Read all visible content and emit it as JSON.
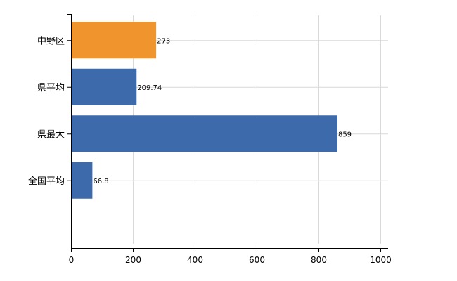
{
  "chart_data": {
    "type": "bar",
    "orientation": "horizontal",
    "categories": [
      "中野区",
      "県平均",
      "県最大",
      "全国平均"
    ],
    "values": [
      273,
      209.74,
      859,
      66.8
    ],
    "value_labels": [
      "273",
      "209.74",
      "859",
      "66.8"
    ],
    "colors": [
      "#f0952e",
      "#3d6aab",
      "#3d6aab",
      "#3d6aab"
    ],
    "title": "",
    "xlabel": "",
    "ylabel": "",
    "xlim": [
      0,
      1000
    ],
    "x_ticks": [
      0,
      200,
      400,
      600,
      800,
      1000
    ],
    "grid": true,
    "legend": "none"
  },
  "colors": {
    "accent": "#f0952e",
    "bar": "#3d6aab",
    "grid": "#d9d9d9",
    "axis": "#000000"
  }
}
